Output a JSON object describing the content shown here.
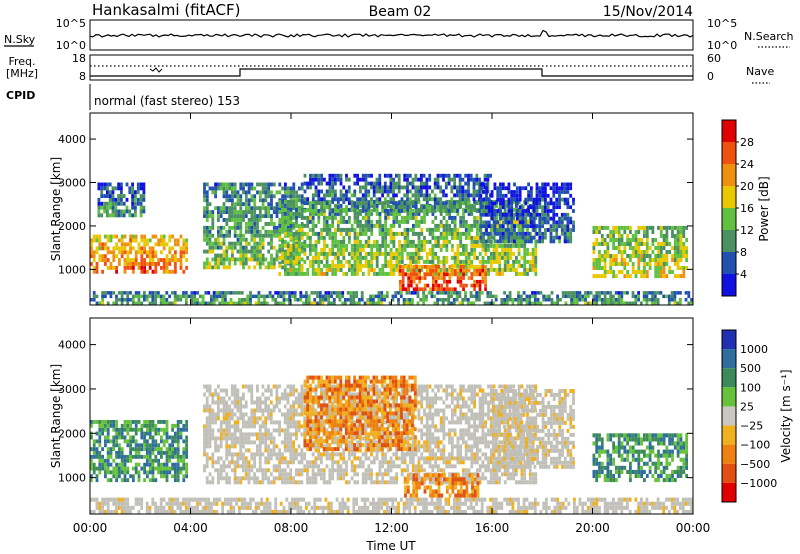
{
  "header": {
    "station": "Hankasalmi (fitACF)",
    "beam": "Beam 02",
    "date": "15/Nov/2014"
  },
  "left_labels": {
    "nsky": "N.Sky",
    "freq_line1": "Freq.",
    "freq_line2": "[MHz]",
    "cpid": "CPID",
    "nsky_ticks": [
      "10^5",
      "10^0"
    ],
    "freq_ticks": [
      "18",
      "8"
    ]
  },
  "right_labels": {
    "nsearch": "N.Search",
    "nave": "Nave",
    "nsearch_ticks": [
      "10^5",
      "10^0"
    ],
    "nave_ticks": [
      "60",
      "0"
    ]
  },
  "cpid_text": "normal (fast stereo) 153",
  "colors": {
    "power": [
      "#1010e0",
      "#2050b0",
      "#4a9060",
      "#60c040",
      "#e8c800",
      "#f09010",
      "#f05010",
      "#e00000"
    ],
    "velocity": [
      "#2030b0",
      "#2e6e9e",
      "#3b8a5a",
      "#66c23a",
      "#c8c8c0",
      "#f0b020",
      "#f08010",
      "#e05010",
      "#e00000"
    ],
    "ground": "#c0c0b8"
  },
  "chart_data": [
    {
      "type": "heatmap",
      "name": "power-panel",
      "title": "",
      "xlabel": "Time UT",
      "ylabel": "Slant Range [km]",
      "xlim": [
        0,
        24
      ],
      "ylim": [
        180,
        4600
      ],
      "x_ticks": [
        "00:00",
        "04:00",
        "08:00",
        "12:00",
        "16:00",
        "20:00",
        "00:00"
      ],
      "y_ticks": [
        "1000",
        "2000",
        "3000",
        "4000"
      ],
      "colorbar": {
        "label": "Power [dB]",
        "ticks": [
          "4",
          "8",
          "12",
          "16",
          "20",
          "24",
          "28"
        ],
        "range": [
          0,
          32
        ]
      },
      "regions": [
        {
          "t0": 0.0,
          "t1": 3.9,
          "r0": 900,
          "r1": 1800,
          "level": 24
        },
        {
          "t0": 0.3,
          "t1": 2.2,
          "r0": 2200,
          "r1": 3000,
          "level": 10
        },
        {
          "t0": 4.5,
          "t1": 8.5,
          "r0": 1000,
          "r1": 3000,
          "level": 14
        },
        {
          "t0": 7.5,
          "t1": 17.8,
          "r0": 850,
          "r1": 2600,
          "level": 16
        },
        {
          "t0": 8.5,
          "t1": 16.0,
          "r0": 2300,
          "r1": 3200,
          "level": 10
        },
        {
          "t0": 12.3,
          "t1": 15.8,
          "r0": 500,
          "r1": 1100,
          "level": 28
        },
        {
          "t0": 15.5,
          "t1": 19.3,
          "r0": 1600,
          "r1": 3000,
          "level": 8
        },
        {
          "t0": 20.0,
          "t1": 23.8,
          "r0": 800,
          "r1": 2000,
          "level": 18
        },
        {
          "t0": 0.0,
          "t1": 24.0,
          "r0": 180,
          "r1": 500,
          "level": 12
        }
      ]
    },
    {
      "type": "heatmap",
      "name": "velocity-panel",
      "title": "",
      "xlabel": "Time UT",
      "ylabel": "Slant Range [km]",
      "xlim": [
        0,
        24
      ],
      "ylim": [
        180,
        4600
      ],
      "x_ticks": [
        "00:00",
        "04:00",
        "08:00",
        "12:00",
        "16:00",
        "20:00",
        "00:00"
      ],
      "y_ticks": [
        "1000",
        "2000",
        "3000",
        "4000"
      ],
      "colorbar": {
        "label": "Velocity [m s⁻¹]",
        "ticks": [
          "1000",
          "500",
          "100",
          "25",
          "−25",
          "−100",
          "−500",
          "−1000"
        ]
      },
      "regions": [
        {
          "t0": 0.0,
          "t1": 3.9,
          "r0": 900,
          "r1": 2300,
          "class": "positive"
        },
        {
          "t0": 4.5,
          "t1": 17.8,
          "r0": 850,
          "r1": 3100,
          "class": "ground"
        },
        {
          "t0": 8.5,
          "t1": 13.0,
          "r0": 1600,
          "r1": 3300,
          "class": "negative"
        },
        {
          "t0": 12.5,
          "t1": 15.5,
          "r0": 550,
          "r1": 1100,
          "class": "negative"
        },
        {
          "t0": 16.0,
          "t1": 19.3,
          "r0": 1200,
          "r1": 3000,
          "class": "ground"
        },
        {
          "t0": 20.0,
          "t1": 23.8,
          "r0": 900,
          "r1": 2000,
          "class": "positive"
        },
        {
          "t0": 0.0,
          "t1": 24.0,
          "r0": 180,
          "r1": 550,
          "class": "ground"
        }
      ]
    }
  ]
}
